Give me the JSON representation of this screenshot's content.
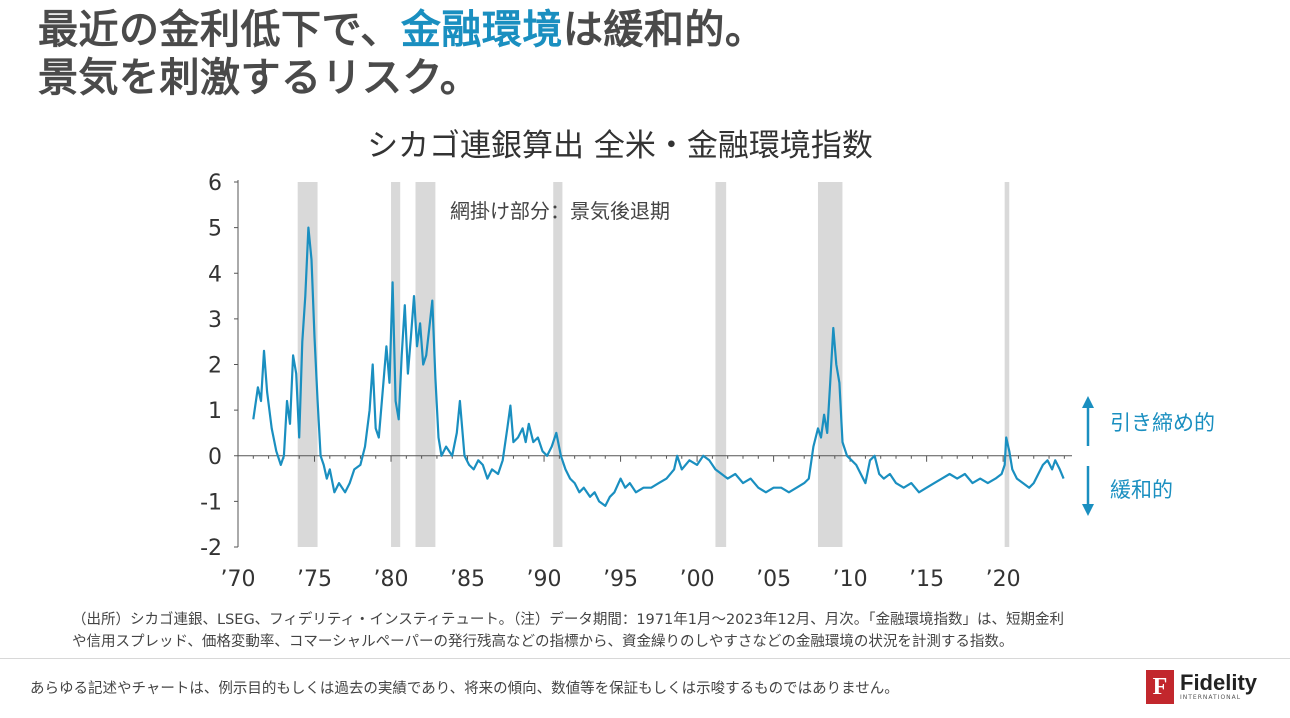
{
  "headline": {
    "line1_pre": "最近の金利低下で、",
    "line1_accent": "金融環境",
    "line1_post": "は緩和的。",
    "line2": "景気を刺激するリスク。"
  },
  "footnote": {
    "line1": "（出所）シカゴ連銀、LSEG、フィデリティ・インスティテュート。（注）データ期間：1971年1月～2023年12月、月次。「金融環境指数」は、短期金利",
    "line2": "や信用スプレッド、価格変動率、コマーシャルペーパーの発行残高などの指標から、資金繰りのしやすさなどの金融環境の状況を計測する指数。"
  },
  "disclaimer": "あらゆる記述やチャートは、例示目的もしくは過去の実績であり、将来の傾向、数値等を保証もしくは示唆するものではありません。",
  "logo": {
    "name": "Fidelity",
    "sub": "INTERNATIONAL",
    "mark": "F"
  },
  "colors": {
    "line": "#1a8fc0",
    "shade": "#d9d9d9",
    "accent": "#1a8fc0",
    "logo": "#c2272d"
  },
  "chart_data": {
    "type": "line",
    "title": "シカゴ連銀算出 全米・金融環境指数",
    "annotation": "網掛け部分：景気後退期",
    "label_up": "引き締め的",
    "label_down": "緩和的",
    "xlim": [
      1970,
      2024.5
    ],
    "ylim": [
      -2,
      6
    ],
    "y_ticks": [
      6,
      5,
      4,
      3,
      2,
      1,
      0,
      -1,
      -2
    ],
    "x_ticks": [
      {
        "value": 1970,
        "label": "’70"
      },
      {
        "value": 1975,
        "label": "’75"
      },
      {
        "value": 1980,
        "label": "’80"
      },
      {
        "value": 1985,
        "label": "’85"
      },
      {
        "value": 1990,
        "label": "’90"
      },
      {
        "value": 1995,
        "label": "’95"
      },
      {
        "value": 2000,
        "label": "’00"
      },
      {
        "value": 2005,
        "label": "’05"
      },
      {
        "value": 2010,
        "label": "’10"
      },
      {
        "value": 2015,
        "label": "’15"
      },
      {
        "value": 2020,
        "label": "’20"
      }
    ],
    "recessions": [
      [
        1973.9,
        1975.2
      ],
      [
        1980.0,
        1980.6
      ],
      [
        1981.6,
        1982.9
      ],
      [
        1990.6,
        1991.2
      ],
      [
        2001.2,
        2001.9
      ],
      [
        2007.9,
        2009.5
      ],
      [
        2020.1,
        2020.4
      ]
    ],
    "series": [
      {
        "points": [
          [
            1971.0,
            0.8
          ],
          [
            1971.3,
            1.5
          ],
          [
            1971.5,
            1.2
          ],
          [
            1971.7,
            2.3
          ],
          [
            1971.9,
            1.4
          ],
          [
            1972.2,
            0.6
          ],
          [
            1972.5,
            0.1
          ],
          [
            1972.8,
            -0.2
          ],
          [
            1973.0,
            0.0
          ],
          [
            1973.2,
            1.2
          ],
          [
            1973.4,
            0.7
          ],
          [
            1973.6,
            2.2
          ],
          [
            1973.8,
            1.8
          ],
          [
            1974.0,
            0.4
          ],
          [
            1974.2,
            2.5
          ],
          [
            1974.4,
            3.5
          ],
          [
            1974.6,
            5.0
          ],
          [
            1974.8,
            4.3
          ],
          [
            1975.0,
            2.6
          ],
          [
            1975.2,
            1.2
          ],
          [
            1975.4,
            0.0
          ],
          [
            1975.6,
            -0.2
          ],
          [
            1975.8,
            -0.5
          ],
          [
            1976.0,
            -0.3
          ],
          [
            1976.3,
            -0.8
          ],
          [
            1976.6,
            -0.6
          ],
          [
            1977.0,
            -0.8
          ],
          [
            1977.3,
            -0.6
          ],
          [
            1977.6,
            -0.3
          ],
          [
            1978.0,
            -0.2
          ],
          [
            1978.3,
            0.2
          ],
          [
            1978.6,
            1.0
          ],
          [
            1978.8,
            2.0
          ],
          [
            1979.0,
            0.6
          ],
          [
            1979.2,
            0.4
          ],
          [
            1979.5,
            1.6
          ],
          [
            1979.7,
            2.4
          ],
          [
            1979.9,
            1.6
          ],
          [
            1980.1,
            3.8
          ],
          [
            1980.3,
            1.2
          ],
          [
            1980.5,
            0.8
          ],
          [
            1980.7,
            2.2
          ],
          [
            1980.9,
            3.3
          ],
          [
            1981.1,
            1.8
          ],
          [
            1981.3,
            2.6
          ],
          [
            1981.5,
            3.5
          ],
          [
            1981.7,
            2.4
          ],
          [
            1981.9,
            2.9
          ],
          [
            1982.1,
            2.0
          ],
          [
            1982.3,
            2.2
          ],
          [
            1982.5,
            2.8
          ],
          [
            1982.7,
            3.4
          ],
          [
            1982.9,
            1.7
          ],
          [
            1983.1,
            0.4
          ],
          [
            1983.3,
            0.0
          ],
          [
            1983.6,
            0.2
          ],
          [
            1984.0,
            0.0
          ],
          [
            1984.3,
            0.5
          ],
          [
            1984.5,
            1.2
          ],
          [
            1984.8,
            0.0
          ],
          [
            1985.1,
            -0.2
          ],
          [
            1985.4,
            -0.3
          ],
          [
            1985.7,
            -0.1
          ],
          [
            1986.0,
            -0.2
          ],
          [
            1986.3,
            -0.5
          ],
          [
            1986.6,
            -0.3
          ],
          [
            1987.0,
            -0.4
          ],
          [
            1987.3,
            -0.1
          ],
          [
            1987.6,
            0.6
          ],
          [
            1987.8,
            1.1
          ],
          [
            1988.0,
            0.3
          ],
          [
            1988.3,
            0.4
          ],
          [
            1988.6,
            0.6
          ],
          [
            1988.8,
            0.3
          ],
          [
            1989.0,
            0.7
          ],
          [
            1989.3,
            0.3
          ],
          [
            1989.6,
            0.4
          ],
          [
            1989.9,
            0.1
          ],
          [
            1990.2,
            0.0
          ],
          [
            1990.5,
            0.2
          ],
          [
            1990.8,
            0.5
          ],
          [
            1991.1,
            0.0
          ],
          [
            1991.4,
            -0.3
          ],
          [
            1991.7,
            -0.5
          ],
          [
            1992.0,
            -0.6
          ],
          [
            1992.3,
            -0.8
          ],
          [
            1992.6,
            -0.7
          ],
          [
            1993.0,
            -0.9
          ],
          [
            1993.3,
            -0.8
          ],
          [
            1993.6,
            -1.0
          ],
          [
            1994.0,
            -1.1
          ],
          [
            1994.3,
            -0.9
          ],
          [
            1994.6,
            -0.8
          ],
          [
            1995.0,
            -0.5
          ],
          [
            1995.3,
            -0.7
          ],
          [
            1995.6,
            -0.6
          ],
          [
            1996.0,
            -0.8
          ],
          [
            1996.5,
            -0.7
          ],
          [
            1997.0,
            -0.7
          ],
          [
            1997.5,
            -0.6
          ],
          [
            1998.0,
            -0.5
          ],
          [
            1998.5,
            -0.3
          ],
          [
            1998.7,
            0.0
          ],
          [
            1999.0,
            -0.3
          ],
          [
            1999.5,
            -0.1
          ],
          [
            2000.0,
            -0.2
          ],
          [
            2000.4,
            0.0
          ],
          [
            2000.8,
            -0.1
          ],
          [
            2001.2,
            -0.3
          ],
          [
            2001.6,
            -0.4
          ],
          [
            2002.0,
            -0.5
          ],
          [
            2002.5,
            -0.4
          ],
          [
            2003.0,
            -0.6
          ],
          [
            2003.5,
            -0.5
          ],
          [
            2004.0,
            -0.7
          ],
          [
            2004.5,
            -0.8
          ],
          [
            2005.0,
            -0.7
          ],
          [
            2005.5,
            -0.7
          ],
          [
            2006.0,
            -0.8
          ],
          [
            2006.5,
            -0.7
          ],
          [
            2007.0,
            -0.6
          ],
          [
            2007.3,
            -0.5
          ],
          [
            2007.6,
            0.2
          ],
          [
            2007.9,
            0.6
          ],
          [
            2008.1,
            0.4
          ],
          [
            2008.3,
            0.9
          ],
          [
            2008.5,
            0.5
          ],
          [
            2008.7,
            1.6
          ],
          [
            2008.9,
            2.8
          ],
          [
            2009.1,
            2.0
          ],
          [
            2009.3,
            1.6
          ],
          [
            2009.5,
            0.3
          ],
          [
            2009.8,
            0.0
          ],
          [
            2010.1,
            -0.1
          ],
          [
            2010.4,
            -0.2
          ],
          [
            2010.7,
            -0.4
          ],
          [
            2011.0,
            -0.6
          ],
          [
            2011.3,
            -0.1
          ],
          [
            2011.6,
            0.0
          ],
          [
            2011.9,
            -0.4
          ],
          [
            2012.2,
            -0.5
          ],
          [
            2012.6,
            -0.4
          ],
          [
            2013.0,
            -0.6
          ],
          [
            2013.5,
            -0.7
          ],
          [
            2014.0,
            -0.6
          ],
          [
            2014.5,
            -0.8
          ],
          [
            2015.0,
            -0.7
          ],
          [
            2015.5,
            -0.6
          ],
          [
            2016.0,
            -0.5
          ],
          [
            2016.5,
            -0.4
          ],
          [
            2017.0,
            -0.5
          ],
          [
            2017.5,
            -0.4
          ],
          [
            2018.0,
            -0.6
          ],
          [
            2018.5,
            -0.5
          ],
          [
            2019.0,
            -0.6
          ],
          [
            2019.5,
            -0.5
          ],
          [
            2019.9,
            -0.4
          ],
          [
            2020.1,
            -0.2
          ],
          [
            2020.2,
            0.4
          ],
          [
            2020.4,
            0.1
          ],
          [
            2020.6,
            -0.3
          ],
          [
            2020.9,
            -0.5
          ],
          [
            2021.3,
            -0.6
          ],
          [
            2021.7,
            -0.7
          ],
          [
            2022.0,
            -0.6
          ],
          [
            2022.3,
            -0.4
          ],
          [
            2022.6,
            -0.2
          ],
          [
            2022.9,
            -0.1
          ],
          [
            2023.2,
            -0.3
          ],
          [
            2023.4,
            -0.1
          ],
          [
            2023.7,
            -0.3
          ],
          [
            2023.95,
            -0.5
          ]
        ]
      }
    ]
  }
}
